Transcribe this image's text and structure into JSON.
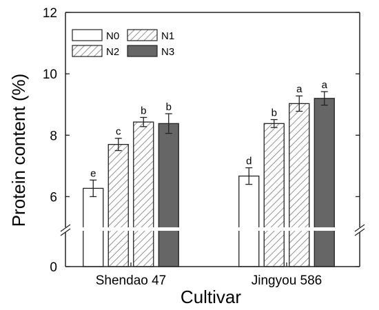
{
  "chart_data": {
    "type": "bar",
    "xlabel": "Cultivar",
    "ylabel": "Protein content (%)",
    "categories": [
      "Shendao 47",
      "Jingyou 586"
    ],
    "series": [
      {
        "name": "N0",
        "values": [
          6.27,
          6.67
        ],
        "errors": [
          0.27,
          0.27
        ],
        "letters": [
          "e",
          "d"
        ],
        "fill": "#ffffff",
        "pattern": "none"
      },
      {
        "name": "N1",
        "values": [
          7.7,
          8.38
        ],
        "errors": [
          0.2,
          0.13
        ],
        "letters": [
          "c",
          "b"
        ],
        "fill": "#ffffff",
        "pattern": "hatch"
      },
      {
        "name": "N2",
        "values": [
          8.43,
          9.03
        ],
        "errors": [
          0.15,
          0.25
        ],
        "letters": [
          "b",
          "a"
        ],
        "fill": "#ffffff",
        "pattern": "hatch"
      },
      {
        "name": "N3",
        "values": [
          8.38,
          9.2
        ],
        "errors": [
          0.32,
          0.22
        ],
        "letters": [
          "b",
          "a"
        ],
        "fill": "#666666",
        "pattern": "none"
      }
    ],
    "y_axis": {
      "broken": true,
      "lower_segment": [
        0,
        1
      ],
      "upper_segment": [
        5,
        12
      ],
      "ticks": [
        0,
        6,
        8,
        10,
        12
      ]
    },
    "legend": {
      "placement": "top-left",
      "columns": 2
    },
    "grid": false
  }
}
